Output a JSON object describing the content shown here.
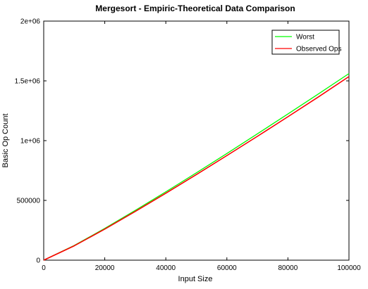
{
  "chart_data": {
    "type": "line",
    "title": "Mergesort - Empiric-Theoretical Data Comparison",
    "xlabel": "Input Size",
    "ylabel": "Basic Op Count",
    "xlim": [
      0,
      100000
    ],
    "ylim": [
      0,
      2000000
    ],
    "x_ticks": [
      0,
      20000,
      40000,
      60000,
      80000,
      100000
    ],
    "x_tick_labels": [
      "0",
      "20000",
      "40000",
      "60000",
      "80000",
      "100000"
    ],
    "y_ticks": [
      0,
      500000,
      1000000,
      1500000,
      2000000
    ],
    "y_tick_labels": [
      "0",
      "500000",
      "1e+06",
      "1.5e+06",
      "2e+06"
    ],
    "grid": false,
    "legend_position": "top-right",
    "series": [
      {
        "name": "Worst",
        "color": "#00ff00",
        "x": [
          0,
          10000,
          20000,
          30000,
          40000,
          50000,
          60000,
          70000,
          80000,
          90000,
          100000
        ],
        "y": [
          0,
          122877,
          265754,
          416231,
          571508,
          730482,
          892463,
          1056955,
          1223017,
          1390918,
          1560964
        ]
      },
      {
        "name": "Observed Ops",
        "color": "#ff0000",
        "x": [
          0,
          10000,
          20000,
          30000,
          40000,
          50000,
          60000,
          70000,
          80000,
          90000,
          100000
        ],
        "y": [
          0,
          120000,
          260000,
          408000,
          560000,
          716000,
          875000,
          1036000,
          1200000,
          1366000,
          1536000
        ]
      }
    ]
  }
}
